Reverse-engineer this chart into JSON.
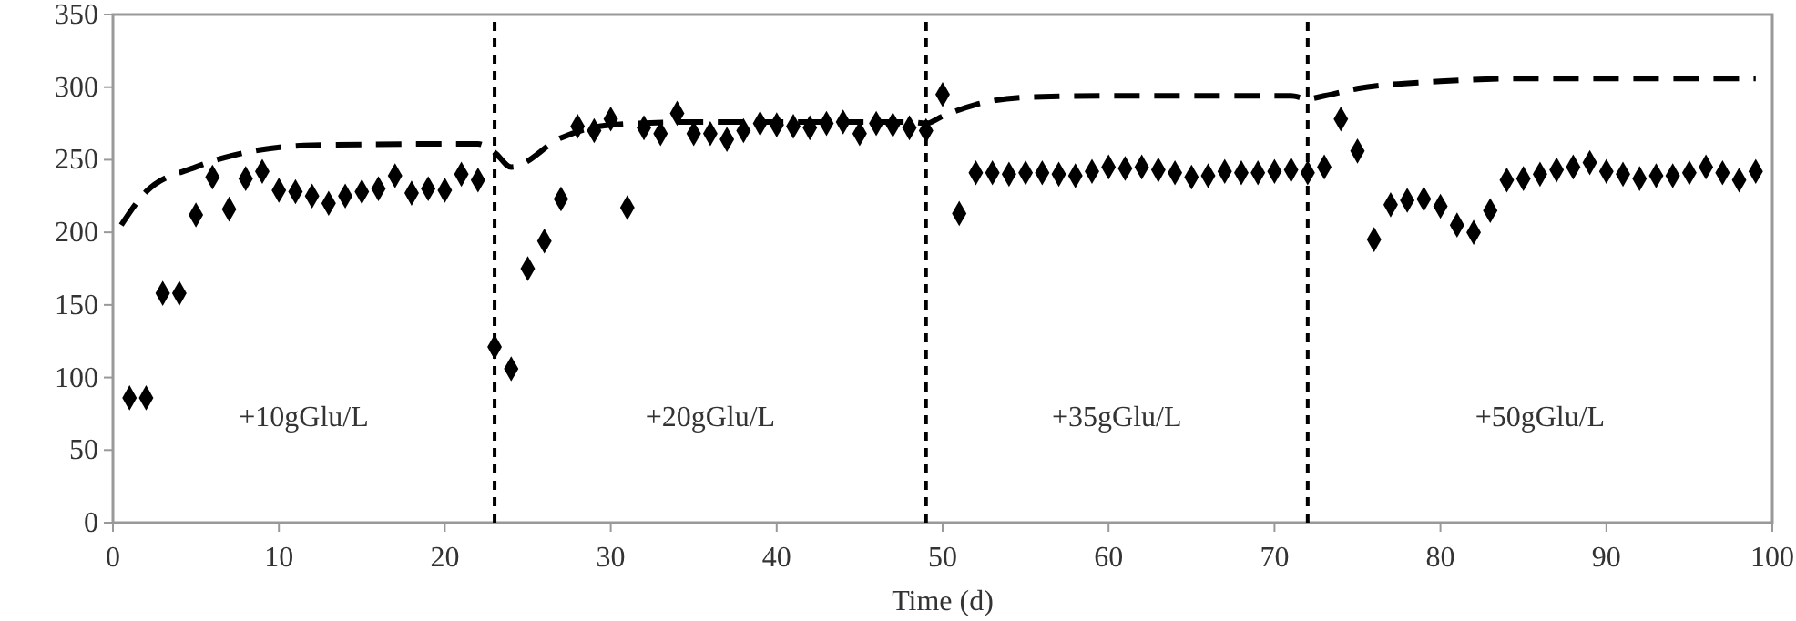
{
  "chart_data": {
    "type": "scatter",
    "xlabel": "Time (d)",
    "xlim": [
      0,
      100
    ],
    "xticks": [
      0,
      10,
      20,
      30,
      40,
      50,
      60,
      70,
      80,
      90,
      100
    ],
    "ylim": [
      0,
      350
    ],
    "yticks": [
      0,
      50,
      100,
      150,
      200,
      250,
      300,
      350
    ],
    "grid": false,
    "series": [
      {
        "color": "#000000",
        "marker": "diamond",
        "x": [
          1,
          2,
          3,
          4,
          5,
          6,
          7,
          8,
          9,
          10,
          11,
          12,
          13,
          14,
          15,
          16,
          17,
          18,
          19,
          20,
          21,
          22,
          23,
          24,
          25,
          26,
          27,
          28,
          29,
          30,
          31,
          32,
          33,
          34,
          35,
          36,
          37,
          38,
          39,
          40,
          41,
          42,
          43,
          44,
          45,
          46,
          47,
          48,
          49,
          50,
          51,
          52,
          53,
          54,
          55,
          56,
          57,
          58,
          59,
          60,
          61,
          62,
          63,
          64,
          65,
          66,
          67,
          68,
          69,
          70,
          71,
          72,
          73,
          74,
          75,
          76,
          77,
          78,
          79,
          80,
          81,
          82,
          83,
          84,
          85,
          86,
          87,
          88,
          89,
          90,
          91,
          92,
          93,
          94,
          95,
          96,
          97,
          98,
          99
        ],
        "values": [
          86,
          86,
          158,
          158,
          212,
          238,
          216,
          237,
          242,
          229,
          228,
          225,
          220,
          225,
          228,
          230,
          239,
          227,
          230,
          229,
          240,
          236,
          121,
          106,
          175,
          194,
          223,
          273,
          270,
          278,
          217,
          272,
          268,
          282,
          268,
          268,
          264,
          270,
          275,
          274,
          273,
          272,
          275,
          276,
          268,
          275,
          274,
          272,
          270,
          295,
          213,
          241,
          241,
          240,
          241,
          241,
          240,
          239,
          242,
          245,
          244,
          245,
          243,
          241,
          238,
          239,
          242,
          241,
          241,
          242,
          243,
          241,
          245,
          278,
          256,
          195,
          219,
          222,
          223,
          218,
          205,
          200,
          215,
          236,
          237,
          240,
          243,
          245,
          248,
          242,
          240,
          237,
          239,
          239,
          241,
          245,
          241,
          236,
          242
        ]
      },
      {
        "type": "line",
        "color": "#000000",
        "marker": "none",
        "line_style": "dashed",
        "x": [
          0.5,
          2,
          5,
          8,
          12,
          22,
          23,
          24,
          27,
          30,
          35,
          48,
          49,
          50,
          52,
          55,
          60,
          71,
          72,
          73,
          75,
          80,
          85,
          99
        ],
        "values": [
          205,
          228,
          245,
          255,
          260,
          261,
          255,
          245,
          265,
          274,
          276,
          276,
          275,
          280,
          288,
          293,
          294,
          294,
          292,
          294,
          299,
          304,
          306,
          306
        ]
      }
    ],
    "ref_lines": [
      {
        "axis": "x",
        "value": 23,
        "line_style": "dashed",
        "color": "#000000"
      },
      {
        "axis": "x",
        "value": 49,
        "line_style": "dashed",
        "color": "#000000"
      },
      {
        "axis": "x",
        "value": 72,
        "line_style": "dashed",
        "color": "#000000"
      }
    ],
    "annotations": [
      "+10gGlu/L",
      "+20gGlu/L",
      "+35gGlu/L",
      "+50gGlu/L"
    ]
  }
}
